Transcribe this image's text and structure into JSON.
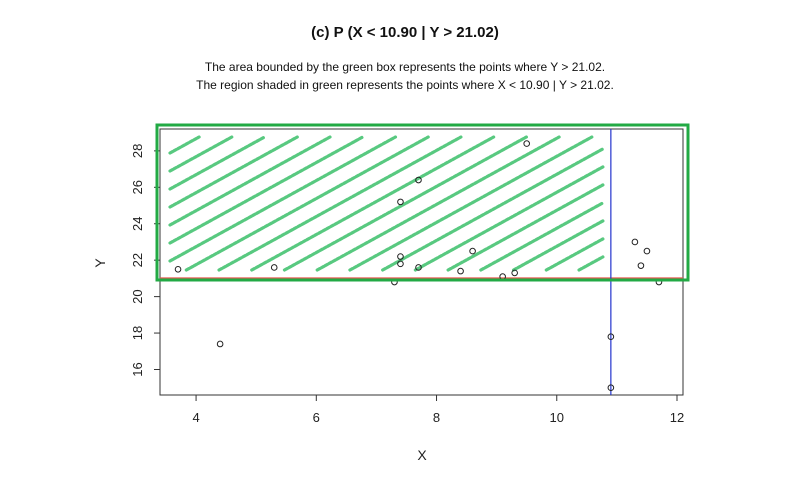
{
  "title": "(c) P (X < 10.90 | Y > 21.02)",
  "description": [
    "The area bounded by the green box represents the points where Y > 21.02.",
    "The region shaded in green represents the points where X < 10.90 | Y > 21.02."
  ],
  "colors": {
    "region_box": "#22aa44",
    "shading": "#3cc06a",
    "threshold_y_line": "#e8554e",
    "threshold_x_line": "#2233cc",
    "points": "#222222"
  },
  "chart_data": {
    "type": "scatter",
    "xlabel": "X",
    "ylabel": "Y",
    "xlim": [
      3.4,
      12.1
    ],
    "ylim": [
      14.6,
      29.2
    ],
    "x_ticks": [
      "4",
      "6",
      "8",
      "10",
      "12"
    ],
    "y_ticks": [
      "16",
      "18",
      "20",
      "22",
      "24",
      "26",
      "28"
    ],
    "grid": false,
    "thresholds": {
      "x": 10.9,
      "y": 21.02
    },
    "series": [
      {
        "values": [
          [
            3.7,
            21.5
          ],
          [
            4.4,
            17.4
          ],
          [
            5.3,
            21.6
          ],
          [
            7.3,
            20.8
          ],
          [
            7.4,
            25.2
          ],
          [
            7.4,
            22.2
          ],
          [
            7.4,
            21.8
          ],
          [
            7.7,
            26.4
          ],
          [
            7.7,
            21.6
          ],
          [
            8.4,
            21.4
          ],
          [
            8.6,
            22.5
          ],
          [
            9.1,
            21.1
          ],
          [
            9.3,
            21.3
          ],
          [
            9.5,
            28.4
          ],
          [
            10.9,
            17.8
          ],
          [
            10.9,
            15.0
          ],
          [
            11.3,
            23.0
          ],
          [
            11.4,
            21.7
          ],
          [
            11.5,
            22.5
          ],
          [
            11.7,
            20.8
          ]
        ]
      }
    ]
  }
}
